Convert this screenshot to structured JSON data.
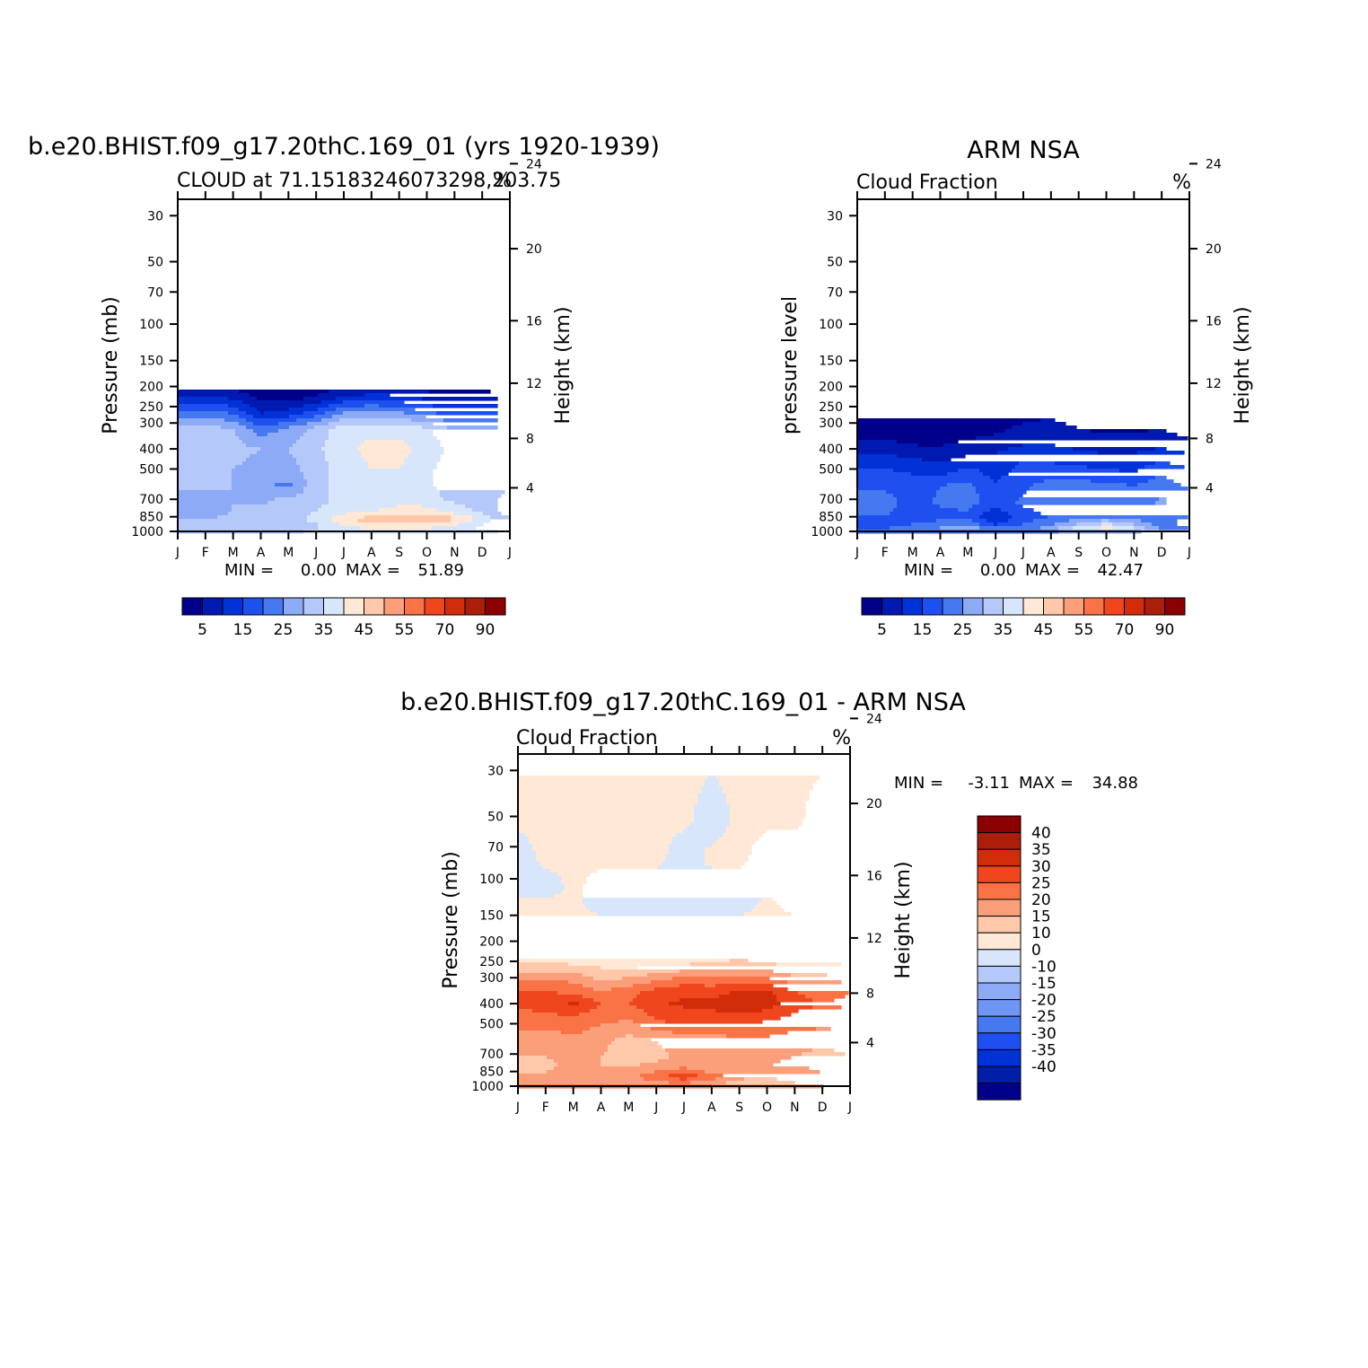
{
  "colors": {
    "model_levels": [
      "#00008b",
      "#0019b0",
      "#0032d8",
      "#1e50f0",
      "#4678f0",
      "#8caaf5",
      "#b4c8fa",
      "#d7e6fa",
      "#ffe8d6",
      "#ffc8aa",
      "#fa9f7a",
      "#fa7346",
      "#f0461e",
      "#d22d0a",
      "#aa1e0a",
      "#8b0000"
    ],
    "diff_levels": [
      "#00008b",
      "#001ea8",
      "#0032d8",
      "#1e50f0",
      "#4678f0",
      "#6e96f5",
      "#8caaf5",
      "#b4c8fa",
      "#d7e6fa",
      "#ffe8d6",
      "#ffc8aa",
      "#fa9f7a",
      "#fa7346",
      "#f0461e",
      "#d22d0a",
      "#aa1e0a",
      "#8b0000"
    ]
  },
  "chart_data": [
    {
      "type": "heatmap",
      "panel": "model",
      "title": "b.e20.BHIST.f09_g17.20thC.169_01 (yrs 1920-1939)",
      "subtitle_left": "CLOUD at 71.15183246073298,203.75",
      "subtitle_right": "%",
      "ylabel": "Pressure (mb)",
      "ylabel_right": "Height (km)",
      "x_ticks": [
        "J",
        "F",
        "M",
        "A",
        "M",
        "J",
        "J",
        "A",
        "S",
        "O",
        "N",
        "D",
        "J"
      ],
      "y_ticks": [
        "30",
        "50",
        "70",
        "100",
        "150",
        "200",
        "250",
        "300",
        "400",
        "500",
        "700",
        "850",
        "1000"
      ],
      "y_ticks_values": [
        30,
        50,
        70,
        100,
        150,
        200,
        250,
        300,
        400,
        500,
        700,
        850,
        1000
      ],
      "y_right_ticks": [
        "24",
        "20",
        "16",
        "12",
        "8",
        "4"
      ],
      "ylim": [
        1000,
        25
      ],
      "stats": {
        "min_label": "MIN =",
        "min": "0.00",
        "max_label": "MAX =",
        "max": "51.89"
      },
      "colorbar_labels": [
        "5",
        "15",
        "25",
        "35",
        "45",
        "55",
        "70",
        "90"
      ],
      "levels": [
        5,
        10,
        15,
        20,
        25,
        30,
        35,
        40,
        45,
        50,
        55,
        60,
        70,
        80,
        90
      ],
      "field": [
        {
          "p": 25,
          "values": [
            0,
            0,
            0,
            0,
            0,
            0,
            0,
            0,
            0,
            0,
            0,
            0,
            0
          ]
        },
        {
          "p": 150,
          "values": [
            0.5,
            0.5,
            0.5,
            0.5,
            0.5,
            0.5,
            0.5,
            0.5,
            0.5,
            0.5,
            0.5,
            0.5,
            0.5
          ]
        },
        {
          "p": 200,
          "values": [
            3,
            3,
            3,
            2,
            2,
            2,
            3,
            3,
            3,
            2,
            2,
            2,
            3
          ]
        },
        {
          "p": 230,
          "values": [
            12,
            12,
            10,
            4,
            4,
            6,
            12,
            14,
            13,
            10,
            8,
            8,
            12
          ]
        },
        {
          "p": 270,
          "values": [
            22,
            22,
            20,
            10,
            12,
            18,
            26,
            28,
            26,
            22,
            18,
            18,
            22
          ]
        },
        {
          "p": 320,
          "values": [
            32,
            32,
            30,
            22,
            26,
            32,
            38,
            38,
            38,
            36,
            30,
            30,
            32
          ]
        },
        {
          "p": 400,
          "values": [
            33,
            33,
            32,
            30,
            30,
            34,
            38,
            42,
            42,
            38,
            33,
            33,
            33
          ]
        },
        {
          "p": 500,
          "values": [
            32,
            32,
            30,
            28,
            28,
            33,
            37,
            40,
            40,
            36,
            32,
            32,
            32
          ]
        },
        {
          "p": 600,
          "values": [
            31,
            31,
            30,
            26,
            24,
            33,
            37,
            35,
            37,
            36,
            32,
            32,
            31
          ]
        },
        {
          "p": 700,
          "values": [
            28,
            28,
            30,
            29,
            31,
            33,
            37,
            35,
            38,
            37,
            34,
            32,
            28
          ]
        },
        {
          "p": 800,
          "values": [
            26,
            26,
            30,
            31,
            33,
            35,
            38,
            40,
            42,
            42,
            38,
            34,
            26
          ]
        },
        {
          "p": 870,
          "values": [
            30,
            30,
            32,
            33,
            34,
            36,
            44,
            48,
            49,
            51,
            46,
            38,
            30
          ]
        },
        {
          "p": 950,
          "values": [
            32,
            32,
            32,
            32,
            32,
            34,
            40,
            42,
            42,
            42,
            38,
            34,
            32
          ]
        },
        {
          "p": 1000,
          "values": [
            34,
            34,
            34,
            34,
            34,
            36,
            36,
            36,
            36,
            36,
            36,
            36,
            34
          ]
        }
      ]
    },
    {
      "type": "heatmap",
      "panel": "obs",
      "title": "ARM NSA",
      "subtitle_left": "Cloud Fraction",
      "subtitle_right": "%",
      "ylabel": "pressure level",
      "ylabel_right": "Height (km)",
      "x_ticks": [
        "J",
        "F",
        "M",
        "A",
        "M",
        "J",
        "J",
        "A",
        "S",
        "O",
        "N",
        "D",
        "J"
      ],
      "y_ticks": [
        "30",
        "50",
        "70",
        "100",
        "150",
        "200",
        "250",
        "300",
        "400",
        "500",
        "700",
        "850",
        "1000"
      ],
      "y_ticks_values": [
        30,
        50,
        70,
        100,
        150,
        200,
        250,
        300,
        400,
        500,
        700,
        850,
        1000
      ],
      "y_right_ticks": [
        "24",
        "20",
        "16",
        "12",
        "8",
        "4"
      ],
      "ylim": [
        1000,
        25
      ],
      "stats": {
        "min_label": "MIN =",
        "min": "0.00",
        "max_label": "MAX =",
        "max": "42.47"
      },
      "colorbar_labels": [
        "5",
        "15",
        "25",
        "35",
        "45",
        "55",
        "70",
        "90"
      ],
      "levels": [
        5,
        10,
        15,
        20,
        25,
        30,
        35,
        40,
        45,
        50,
        55,
        60,
        70,
        80,
        90
      ],
      "field": [
        {
          "p": 25,
          "values": [
            0,
            0,
            0,
            0,
            0,
            0,
            0,
            0,
            0,
            0,
            0,
            0,
            0
          ]
        },
        {
          "p": 240,
          "values": [
            1,
            1,
            1,
            1,
            1,
            1,
            1,
            1,
            1,
            1,
            1,
            1,
            1
          ]
        },
        {
          "p": 300,
          "values": [
            2,
            2,
            1,
            1,
            2,
            3,
            5,
            6,
            4,
            3,
            3,
            4,
            2
          ]
        },
        {
          "p": 360,
          "values": [
            5,
            5,
            3,
            3,
            5,
            6,
            8,
            9,
            7,
            6,
            6,
            7,
            5
          ]
        },
        {
          "p": 420,
          "values": [
            10,
            10,
            8,
            7,
            9,
            10,
            13,
            12,
            11,
            10,
            10,
            12,
            10
          ]
        },
        {
          "p": 500,
          "values": [
            15,
            15,
            14,
            12,
            16,
            12,
            17,
            17,
            16,
            15,
            14,
            18,
            15
          ]
        },
        {
          "p": 600,
          "values": [
            19,
            19,
            17,
            20,
            21,
            16,
            19,
            22,
            22,
            21,
            20,
            23,
            19
          ]
        },
        {
          "p": 720,
          "values": [
            22,
            22,
            18,
            21,
            22,
            18,
            21,
            23,
            24,
            24,
            23,
            26,
            22
          ]
        },
        {
          "p": 850,
          "values": [
            20,
            20,
            17,
            18,
            19,
            10,
            18,
            20,
            22,
            24,
            22,
            21,
            20
          ]
        },
        {
          "p": 920,
          "values": [
            18,
            18,
            20,
            22,
            24,
            14,
            20,
            24,
            30,
            36,
            30,
            22,
            18
          ]
        },
        {
          "p": 970,
          "values": [
            20,
            20,
            22,
            26,
            30,
            22,
            22,
            28,
            38,
            42,
            36,
            24,
            20
          ]
        },
        {
          "p": 1000,
          "values": [
            20,
            20,
            20,
            22,
            24,
            20,
            22,
            24,
            28,
            30,
            26,
            22,
            20
          ]
        }
      ]
    },
    {
      "type": "heatmap",
      "panel": "diff",
      "title": "b.e20.BHIST.f09_g17.20thC.169_01 - ARM NSA",
      "subtitle_left": "Cloud Fraction",
      "subtitle_right": "%",
      "ylabel": "Pressure (mb)",
      "ylabel_right": "Height (km)",
      "x_ticks": [
        "J",
        "F",
        "M",
        "A",
        "M",
        "J",
        "J",
        "A",
        "S",
        "O",
        "N",
        "D",
        "J"
      ],
      "y_ticks": [
        "30",
        "50",
        "70",
        "100",
        "150",
        "200",
        "250",
        "300",
        "400",
        "500",
        "700",
        "850",
        "1000"
      ],
      "y_ticks_values": [
        30,
        50,
        70,
        100,
        150,
        200,
        250,
        300,
        400,
        500,
        700,
        850,
        1000
      ],
      "y_right_ticks": [
        "24",
        "20",
        "16",
        "12",
        "8",
        "4"
      ],
      "ylim": [
        1000,
        25
      ],
      "stats": {
        "min_label": "MIN =",
        "min": "-3.11",
        "max_label": "MAX =",
        "max": "34.88"
      },
      "colorbar_labels": [
        "40",
        "35",
        "30",
        "25",
        "20",
        "15",
        "10",
        "0",
        "-10",
        "-15",
        "-20",
        "-25",
        "-30",
        "-35",
        "-40"
      ],
      "levels": [
        -40,
        -35,
        -30,
        -25,
        -20,
        -15,
        -10,
        -5,
        0,
        5,
        10,
        15,
        20,
        25,
        30,
        35,
        40
      ],
      "field": [
        {
          "p": 25,
          "values": [
            0.5,
            0.5,
            0.5,
            0.5,
            0.5,
            0.5,
            0.5,
            0.5,
            0.5,
            0.5,
            0.5,
            0.5,
            0.5
          ]
        },
        {
          "p": 50,
          "values": [
            0.5,
            0.5,
            0.5,
            0.5,
            0.5,
            0.5,
            0.5,
            -1,
            0.5,
            0.5,
            0.5,
            -1,
            -1
          ]
        },
        {
          "p": 80,
          "values": [
            -1,
            0.5,
            0.5,
            0.5,
            0.5,
            0.5,
            -1,
            0.5,
            0.5,
            -1,
            -1,
            -1,
            -1
          ]
        },
        {
          "p": 110,
          "values": [
            -1,
            -1,
            0.5,
            -1,
            -1,
            -1,
            -1,
            -1,
            -1,
            -1,
            -1,
            -1,
            -1
          ]
        },
        {
          "p": 130,
          "values": [
            0.5,
            0.5,
            0.5,
            -1,
            -1,
            -1,
            -1,
            -1,
            -1,
            0.5,
            -1,
            -1,
            -1
          ]
        },
        {
          "p": 160,
          "values": [
            0.5,
            0.5,
            0.5,
            0.5,
            0.5,
            0.5,
            0.5,
            0.5,
            0.5,
            0.5,
            0.5,
            0.5,
            0.5
          ]
        },
        {
          "p": 220,
          "values": [
            1,
            1,
            1,
            1,
            1,
            1,
            1,
            1,
            1,
            1,
            1,
            1,
            1
          ]
        },
        {
          "p": 260,
          "values": [
            6,
            6,
            5,
            4,
            3,
            4,
            5,
            6,
            7,
            6,
            4,
            4,
            6
          ]
        },
        {
          "p": 300,
          "values": [
            14,
            14,
            13,
            8,
            10,
            13,
            16,
            17,
            16,
            15,
            11,
            11,
            14
          ]
        },
        {
          "p": 350,
          "values": [
            20,
            20,
            19,
            15,
            18,
            22,
            24,
            22,
            26,
            26,
            20,
            18,
            20
          ]
        },
        {
          "p": 400,
          "values": [
            21,
            22,
            26,
            20,
            20,
            24,
            26,
            27,
            30,
            28,
            22,
            20,
            21
          ]
        },
        {
          "p": 480,
          "values": [
            18,
            18,
            18,
            16,
            15,
            20,
            22,
            22,
            22,
            20,
            18,
            17,
            18
          ]
        },
        {
          "p": 600,
          "values": [
            12,
            12,
            14,
            12,
            8,
            10,
            12,
            12,
            14,
            14,
            12,
            12,
            12
          ]
        },
        {
          "p": 720,
          "values": [
            10,
            10,
            12,
            10,
            6,
            9,
            11,
            10,
            10,
            11,
            10,
            8,
            10
          ]
        },
        {
          "p": 800,
          "values": [
            8,
            8,
            12,
            10,
            10,
            11,
            13,
            12,
            10,
            10,
            9,
            8,
            8
          ]
        },
        {
          "p": 860,
          "values": [
            10,
            10,
            15,
            12,
            12,
            16,
            20,
            14,
            13,
            12,
            16,
            10,
            10
          ]
        },
        {
          "p": 900,
          "values": [
            10,
            10,
            14,
            12,
            14,
            18,
            24,
            18,
            12,
            10,
            14,
            10,
            10
          ]
        },
        {
          "p": 960,
          "values": [
            10,
            10,
            12,
            12,
            12,
            14,
            16,
            12,
            8,
            6,
            10,
            10,
            10
          ]
        },
        {
          "p": 1000,
          "values": [
            15,
            15,
            18,
            15,
            15,
            16,
            18,
            15,
            12,
            10,
            14,
            15,
            15
          ]
        }
      ]
    }
  ]
}
